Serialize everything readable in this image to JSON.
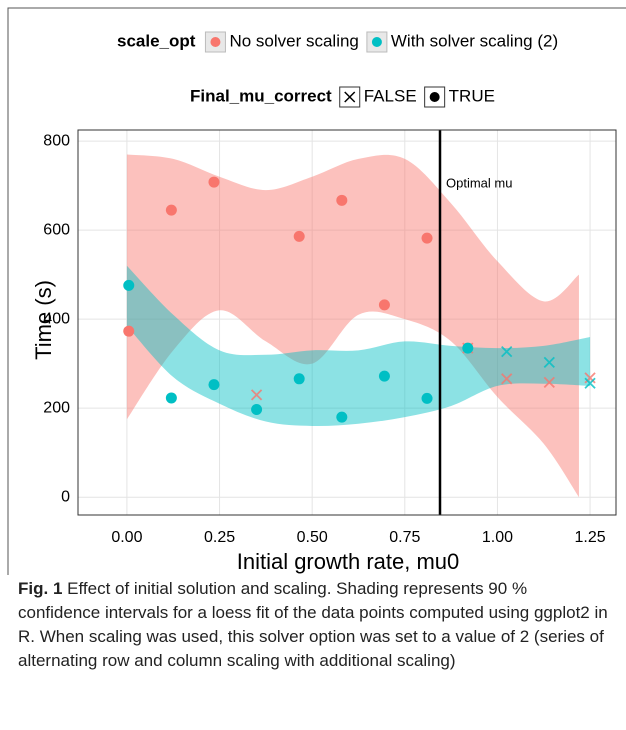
{
  "chart_data": {
    "type": "scatter",
    "xlabel": "Initial growth rate, mu0",
    "ylabel": "Time (s)",
    "xlim": [
      -0.132,
      1.32
    ],
    "ylim": [
      -40,
      825
    ],
    "xticks": [
      {
        "value": 0,
        "label": "0.00"
      },
      {
        "value": 0.25,
        "label": "0.25"
      },
      {
        "value": 0.5,
        "label": "0.50"
      },
      {
        "value": 0.75,
        "label": "0.75"
      },
      {
        "value": 1,
        "label": "1.00"
      },
      {
        "value": 1.25,
        "label": "1.25"
      }
    ],
    "yticks": [
      0,
      200,
      400,
      600,
      800
    ],
    "grid": true,
    "legend": {
      "color_title": "scale_opt",
      "shape_title": "Final_mu_correct",
      "shape_labels": [
        "FALSE",
        "TRUE"
      ]
    },
    "vline": {
      "x": 0.845,
      "label": "Optimal mu"
    },
    "series": [
      {
        "name": "No solver scaling",
        "color": "#F8766D",
        "x": [
          0.005,
          0.12,
          0.235,
          0.35,
          0.465,
          0.58,
          0.695,
          0.81,
          0.92,
          1.025,
          1.14,
          1.25
        ],
        "values": [
          373,
          645,
          708,
          230,
          586,
          667,
          432,
          582,
          335,
          266,
          258,
          268
        ],
        "correct": [
          true,
          true,
          true,
          false,
          true,
          true,
          true,
          true,
          false,
          false,
          false,
          false
        ],
        "band_x": [
          0,
          0.125,
          0.25,
          0.375,
          0.5,
          0.625,
          0.75,
          0.875,
          1.0,
          1.125,
          1.22
        ],
        "band_upper": [
          770,
          760,
          720,
          690,
          720,
          760,
          760,
          660,
          530,
          440,
          500
        ],
        "band_lower": [
          175,
          330,
          420,
          350,
          300,
          410,
          400,
          350,
          225,
          120,
          0
        ]
      },
      {
        "name": "With solver scaling (2)",
        "color": "#00BFC4",
        "x": [
          0.005,
          0.12,
          0.235,
          0.35,
          0.465,
          0.58,
          0.695,
          0.81,
          0.92,
          1.025,
          1.14,
          1.25
        ],
        "values": [
          476,
          223,
          253,
          197,
          266,
          180,
          272,
          222,
          335,
          327,
          303,
          256
        ],
        "correct": [
          true,
          true,
          true,
          true,
          true,
          true,
          true,
          true,
          true,
          false,
          false,
          false
        ],
        "band_x": [
          0,
          0.125,
          0.25,
          0.375,
          0.5,
          0.625,
          0.75,
          0.875,
          1.0,
          1.125,
          1.25
        ],
        "band_upper": [
          520,
          410,
          330,
          320,
          330,
          330,
          350,
          340,
          335,
          340,
          360
        ],
        "band_lower": [
          385,
          270,
          210,
          170,
          160,
          165,
          180,
          205,
          250,
          255,
          250
        ]
      }
    ],
    "caption_label": "Fig. 1",
    "caption_text": "Effect of initial solution and scaling. Shading represents 90 % confidence intervals for a loess fit of the data points computed using ggplot2 in R. When scaling was used, this solver option was set to a value of 2 (series of alternating row and column scaling with additional scaling)"
  }
}
